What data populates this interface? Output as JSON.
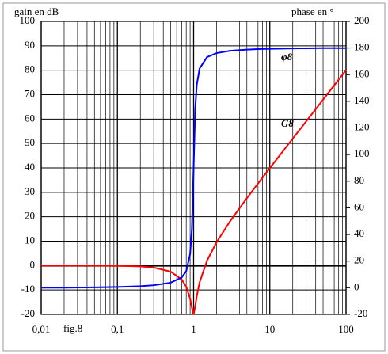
{
  "chart_data": {
    "type": "line",
    "y_label": "gain en dB",
    "y2_label": "phase en °",
    "annotation": "fig.8",
    "log_x": true,
    "grid": true,
    "x": [
      0.01,
      0.02,
      0.05,
      0.1,
      0.2,
      0.3,
      0.5,
      0.7,
      0.8,
      0.9,
      0.95,
      1,
      1.05,
      1.1,
      1.2,
      1.5,
      2,
      3,
      5,
      7,
      10,
      20,
      30,
      50,
      70,
      100
    ],
    "xlim": [
      0.01,
      100
    ],
    "xticks": [
      {
        "value": 0.01,
        "label": "0,01"
      },
      {
        "value": 0.1,
        "label": "0,1"
      },
      1,
      10,
      100
    ],
    "ylim": [
      -20,
      100
    ],
    "yticks": [
      -20,
      -10,
      0,
      10,
      20,
      30,
      40,
      50,
      60,
      70,
      80,
      90,
      100
    ],
    "y2lim": [
      -20,
      200
    ],
    "y2ticks": [
      -20,
      0,
      20,
      40,
      60,
      80,
      100,
      120,
      140,
      160,
      180,
      200
    ],
    "series": [
      {
        "name": "G8",
        "color": "#ff0000",
        "axis": "y",
        "values": [
          0,
          0,
          -0.02,
          -0.09,
          -0.35,
          -0.81,
          -2.48,
          -5.77,
          -8.66,
          -13.55,
          -17.32,
          -20,
          -16.67,
          -12.5,
          -6.82,
          2.0,
          9.56,
          18.07,
          27.61,
          33.63,
          39.91,
          52.02,
          59.07,
          67.96,
          73.8,
          80.0
        ]
      },
      {
        "name": "φ8",
        "color": "#0000ff",
        "axis": "y2",
        "values": [
          0.1,
          0.1,
          0.29,
          0.58,
          1.19,
          1.89,
          3.81,
          7.8,
          12.5,
          25.3,
          44.3,
          90,
          134.3,
          152.4,
          164.7,
          173.2,
          176.2,
          177.9,
          178.8,
          179.2,
          179.4,
          179.7,
          179.8,
          179.9,
          179.9,
          179.9
        ]
      }
    ]
  }
}
